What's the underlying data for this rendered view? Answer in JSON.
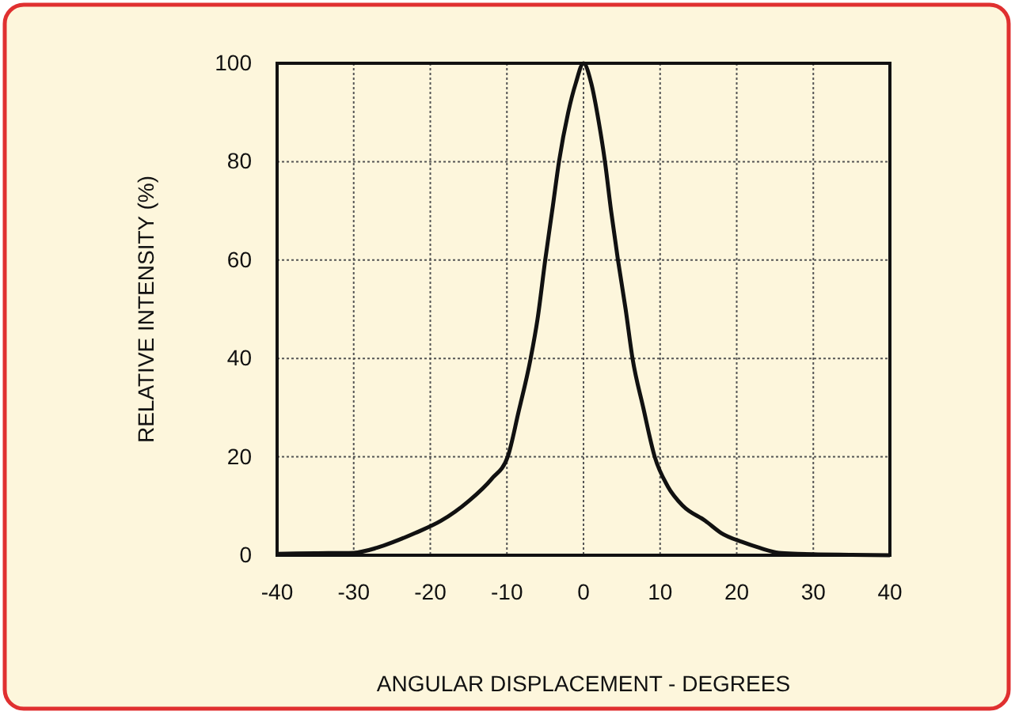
{
  "chart_data": {
    "type": "line",
    "xlabel": "ANGULAR DISPLACEMENT - DEGREES",
    "ylabel": "RELATIVE INTENSITY (%)",
    "xlim": [
      -40,
      40
    ],
    "xticks": [
      -40,
      -30,
      -20,
      -10,
      0,
      10,
      20,
      30,
      40
    ],
    "ylim": [
      0,
      100
    ],
    "yticks": [
      0,
      20,
      40,
      60,
      80,
      100
    ],
    "grid": true,
    "line_style": "solid",
    "marker": "none",
    "series": [
      {
        "color": "#111111",
        "x": [
          -40,
          -35,
          -30,
          -27,
          -24.8,
          -22,
          -18.6,
          -15,
          -12,
          -9.9,
          -8.5,
          -6.9,
          -6,
          -5,
          -4,
          -3.2,
          -2,
          -1,
          0,
          1,
          2,
          2.8,
          3.6,
          4.5,
          5.5,
          6.4,
          7.8,
          9.3,
          11,
          13,
          15.9,
          18,
          20.7,
          23,
          25.5,
          28,
          30,
          35,
          40
        ],
        "values": [
          0.3,
          0.4,
          0.5,
          1.5,
          2.7,
          4.5,
          7,
          11,
          15.5,
          20,
          29,
          40,
          48,
          60,
          71,
          80,
          90,
          96,
          100,
          96,
          88,
          80,
          70,
          60,
          50,
          40,
          30,
          20,
          14,
          10,
          7,
          4.5,
          2.7,
          1.5,
          0.5,
          0.3,
          0.2,
          0.1,
          0
        ]
      }
    ]
  }
}
